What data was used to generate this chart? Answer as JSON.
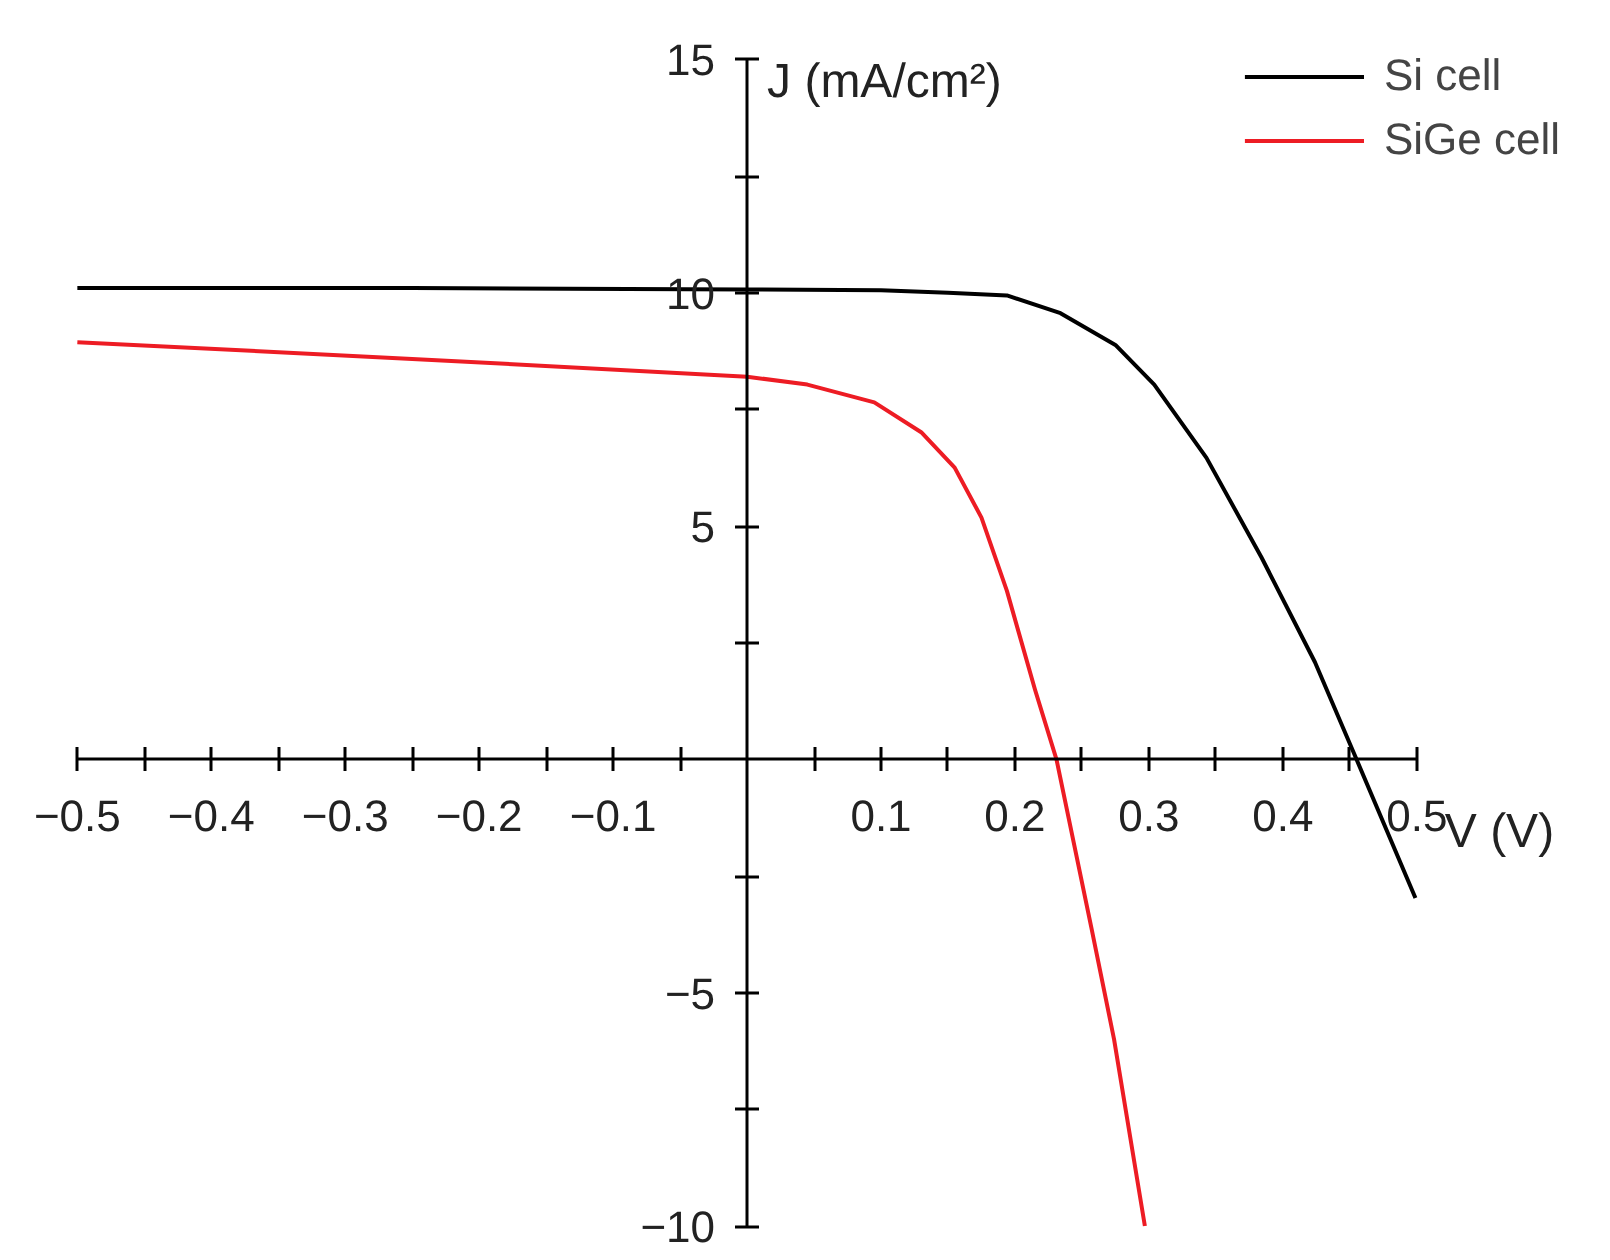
{
  "chart_data": {
    "type": "line",
    "xlabel": "V (V)",
    "ylabel": "J (mA/cm²)",
    "xlim": [
      -0.5,
      0.5
    ],
    "ylim": [
      -10,
      15
    ],
    "xticks": [
      -0.5,
      {
        "value": -0.45,
        "label": null
      },
      -0.4,
      {
        "value": -0.35,
        "label": null
      },
      -0.3,
      {
        "value": -0.25,
        "label": null
      },
      -0.2,
      {
        "value": -0.15,
        "label": null
      },
      -0.1,
      {
        "value": -0.05,
        "label": null
      },
      {
        "value": 0.05,
        "label": null
      },
      0.1,
      {
        "value": 0.15,
        "label": null
      },
      0.2,
      {
        "value": 0.25,
        "label": null
      },
      0.3,
      {
        "value": 0.35,
        "label": null
      },
      0.4,
      {
        "value": 0.45,
        "label": null
      },
      0.5
    ],
    "yticks": [
      -10,
      {
        "value": -7.5,
        "label": null
      },
      -5,
      {
        "value": -2.5,
        "label": null
      },
      {
        "value": 2.5,
        "label": null
      },
      5,
      {
        "value": 7.5,
        "label": null
      },
      10,
      {
        "value": 12.5,
        "label": null
      },
      15
    ],
    "grid": false,
    "legend": "top right",
    "marker": "none",
    "line_style": "solid",
    "series": [
      {
        "name": "Si cell",
        "color": "#000000",
        "x": [
          -0.5,
          -0.25,
          0,
          0.1,
          0.15,
          0.194,
          0.234,
          0.275,
          0.304,
          0.343,
          0.384,
          0.424,
          0.455,
          0.499
        ],
        "values": [
          10.1,
          10.1,
          10.07,
          10.05,
          10.0,
          9.94,
          9.56,
          8.88,
          8.03,
          6.46,
          4.33,
          2.08,
          0,
          -2.97
        ]
      },
      {
        "name": "SiGe cell",
        "color": "#ed1c24",
        "x": [
          -0.5,
          -0.25,
          0,
          0.045,
          0.095,
          0.13,
          0.155,
          0.175,
          0.194,
          0.215,
          0.231,
          0.257,
          0.274,
          0.297
        ],
        "values": [
          8.94,
          8.58,
          8.2,
          8.03,
          7.65,
          7.01,
          6.25,
          5.18,
          3.61,
          1.49,
          0,
          -3.6,
          -6.0,
          -10.0
        ]
      }
    ]
  }
}
